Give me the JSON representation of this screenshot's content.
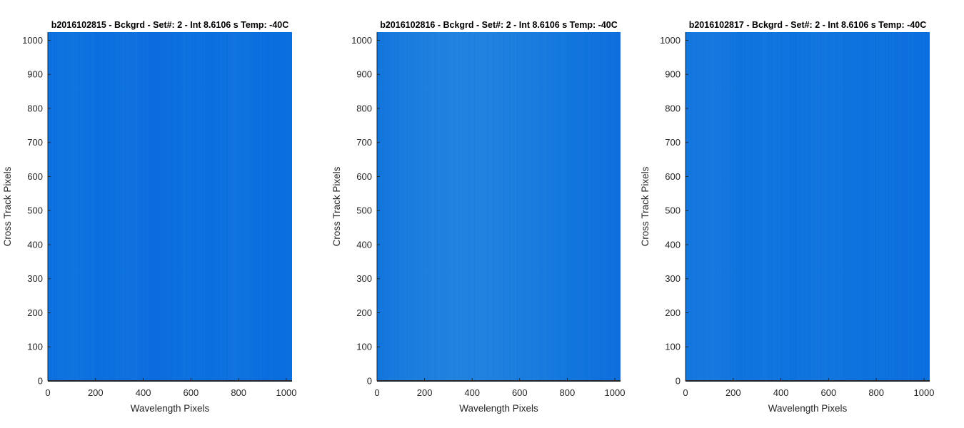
{
  "chart_data": [
    {
      "type": "heatmap",
      "title": "b2016102815 - Bckgrd - Set#: 2 - Int 8.6106 s Temp: -40C",
      "xlabel": "Wavelength Pixels",
      "ylabel": "Cross Track Pixels",
      "xlim": [
        0,
        1024
      ],
      "ylim": [
        0,
        1024
      ],
      "xticks": [
        0,
        200,
        400,
        600,
        800,
        1000
      ],
      "yticks": [
        0,
        100,
        200,
        300,
        400,
        500,
        600,
        700,
        800,
        900,
        1000
      ],
      "colors": {
        "base": "#0b6fdf",
        "light": "#2f8de0",
        "dark": "#0a5fdc"
      },
      "grid": false
    },
    {
      "type": "heatmap",
      "title": "b2016102816 - Bckgrd - Set#: 2 - Int 8.6106 s Temp: -40C",
      "xlabel": "Wavelength Pixels",
      "ylabel": "Cross Track Pixels",
      "xlim": [
        0,
        1024
      ],
      "ylim": [
        0,
        1024
      ],
      "xticks": [
        0,
        200,
        400,
        600,
        800,
        1000
      ],
      "yticks": [
        0,
        100,
        200,
        300,
        400,
        500,
        600,
        700,
        800,
        900,
        1000
      ],
      "colors": {
        "base": "#1277dd",
        "light": "#2f8de0",
        "dark": "#0a5fdc"
      },
      "grid": false
    },
    {
      "type": "heatmap",
      "title": "b2016102817 - Bckgrd - Set#: 2 - Int 8.6106 s Temp: -40C",
      "xlabel": "Wavelength Pixels",
      "ylabel": "Cross Track Pixels",
      "xlim": [
        0,
        1024
      ],
      "ylim": [
        0,
        1024
      ],
      "xticks": [
        0,
        200,
        400,
        600,
        800,
        1000
      ],
      "yticks": [
        0,
        100,
        200,
        300,
        400,
        500,
        600,
        700,
        800,
        900,
        1000
      ],
      "colors": {
        "base": "#0d72de",
        "light": "#2f8de0",
        "dark": "#0a5fdc"
      },
      "grid": false
    }
  ]
}
